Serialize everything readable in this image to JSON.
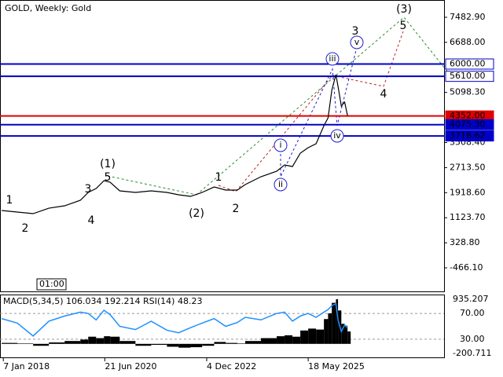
{
  "chart_data": [
    {
      "type": "line",
      "title": "GOLD, Weekly:  Gold",
      "time_label": "01:00",
      "x": [
        2017.98,
        2018.36,
        2018.74,
        2019.12,
        2019.5,
        2019.88,
        2020.07,
        2020.26,
        2020.45,
        2020.6,
        2020.83,
        2021.21,
        2021.59,
        2021.97,
        2022.25,
        2022.54,
        2022.82,
        2023.11,
        2023.39,
        2023.67,
        2023.86,
        2024.24,
        2024.62,
        2024.81,
        2025.0,
        2025.19,
        2025.38,
        2025.57,
        2025.76,
        2025.86,
        2025.95,
        2026.05,
        2026.1,
        2026.18,
        2026.26,
        2026.33
      ],
      "xlim": [
        2017.94,
        2028.66
      ],
      "xticks": [
        {
          "value": 2018.02,
          "label": "7 Jan 2018"
        },
        {
          "value": 2020.47,
          "label": "21 Jun 2020"
        },
        {
          "value": 2022.93,
          "label": "4 Dec 2022"
        },
        {
          "value": 2025.38,
          "label": "18 May 2025"
        }
      ],
      "series": [
        {
          "color": "#000000",
          "values": [
            1353,
            1303,
            1253,
            1427,
            1502,
            1677,
            1926,
            2050,
            2300,
            2250,
            1976,
            1926,
            1976,
            1926,
            1851,
            1801,
            1926,
            2100,
            2001,
            2001,
            2175,
            2424,
            2599,
            2798,
            2748,
            3172,
            3346,
            3471,
            4044,
            4293,
            5165,
            5664,
            5290,
            4667,
            4792,
            4360
          ]
        }
      ],
      "ylim": [
        -466.1,
        7482.9
      ],
      "yticks": [
        {
          "value": 7482.9,
          "label": "7482.90"
        },
        {
          "value": 6688.0,
          "label": "6688.00"
        },
        {
          "value": 5098.3,
          "label": "5098.30"
        },
        {
          "value": 3508.4,
          "label": "3508.40"
        },
        {
          "value": 2713.5,
          "label": "2713.50"
        },
        {
          "value": 1918.6,
          "label": "1918.60"
        },
        {
          "value": 1123.7,
          "label": "1123.70"
        },
        {
          "value": 328.8,
          "label": "328.80"
        },
        {
          "value": -466.1,
          "label": "-466.10"
        }
      ],
      "levels": [
        {
          "value": 6000,
          "label": "6000.00",
          "color": "#0000c8",
          "box": "outline"
        },
        {
          "value": 5610,
          "label": "5610.00",
          "color": "#0000c8",
          "box": "outline"
        },
        {
          "value": 4352,
          "label": "4352.00",
          "color": "#e00000",
          "box": "filled"
        },
        {
          "value": 4075.3,
          "label": "4075.30",
          "color": "#0000c8",
          "box": "filled"
        },
        {
          "value": 3718.62,
          "label": "3718.62",
          "color": "#0000c8",
          "box": "filled"
        }
      ],
      "waves": [
        {
          "label": "1",
          "color": "#a52a2a"
        },
        {
          "label": "2",
          "color": "#a52a2a"
        },
        {
          "label": "3",
          "color": "#a52a2a"
        },
        {
          "label": "4",
          "color": "#a52a2a"
        },
        {
          "label": "5",
          "color": "#a52a2a"
        },
        {
          "label": "(1)",
          "color": "#2e8b2e"
        },
        {
          "label": "(2)",
          "color": "#2e8b2e"
        },
        {
          "label": "(3)",
          "color": "#2e8b2e"
        },
        {
          "label": "1",
          "color": "#a52a2a"
        },
        {
          "label": "2",
          "color": "#a52a2a"
        },
        {
          "label": "3",
          "color": "#a52a2a"
        },
        {
          "label": "4",
          "color": "#a52a2a"
        },
        {
          "label": "5",
          "color": "#a52a2a"
        },
        {
          "label": "i",
          "color": "#1e1ecc",
          "circled": true
        },
        {
          "label": "ii",
          "color": "#1e1ecc",
          "circled": true
        },
        {
          "label": "iii",
          "color": "#1e1ecc",
          "circled": true
        },
        {
          "label": "iv",
          "color": "#1e1ecc",
          "circled": true
        },
        {
          "label": "v",
          "color": "#1e1ecc",
          "circled": true
        }
      ]
    },
    {
      "type": "macd",
      "title": "MACD(5,34,5) 106.034 192.214 RSI(14) 48.23",
      "ylim": [
        -200.711,
        935.207
      ],
      "yticks": [
        {
          "value": 935.207,
          "label": "935.207"
        },
        {
          "value": -200.711,
          "label": "-200.711"
        }
      ],
      "y2lim": [
        8,
        92
      ],
      "y2ticks": [
        {
          "value": 70,
          "label": "70.00"
        },
        {
          "value": 30,
          "label": "30.00"
        }
      ],
      "series": [
        {
          "color": "#000000",
          "values": [
            20,
            10,
            -40,
            30,
            60,
            90,
            150,
            120,
            160,
            150,
            60,
            -40,
            -20,
            -60,
            -80,
            -70,
            -40,
            40,
            20,
            10,
            60,
            120,
            160,
            180,
            150,
            280,
            320,
            300,
            520,
            640,
            860,
            935,
            700,
            420,
            380,
            260
          ]
        },
        {
          "color": "#1e90ff",
          "axis": "y2",
          "values": [
            62,
            55,
            35,
            58,
            66,
            72,
            70,
            60,
            75,
            68,
            50,
            45,
            58,
            44,
            40,
            48,
            55,
            62,
            50,
            56,
            64,
            60,
            70,
            72,
            58,
            66,
            70,
            64,
            72,
            76,
            82,
            85,
            60,
            42,
            52,
            48
          ]
        }
      ]
    }
  ]
}
